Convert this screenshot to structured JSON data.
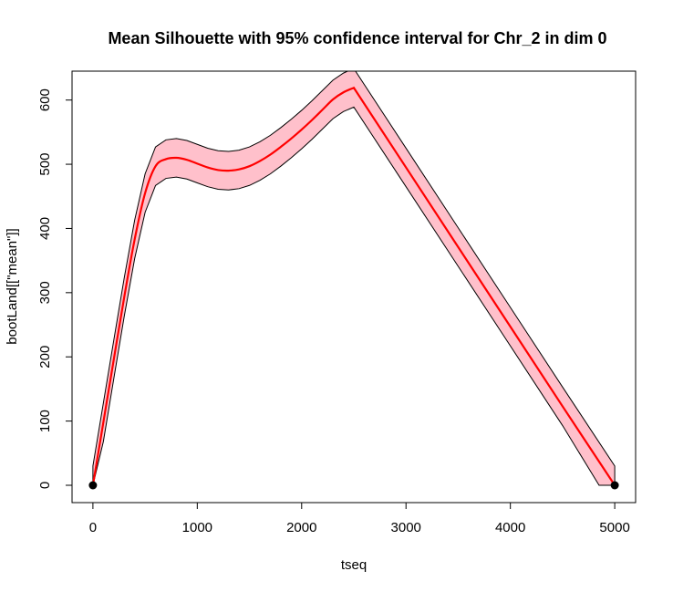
{
  "chart_data": {
    "type": "line",
    "title": "Mean Silhouette with 95% confidence interval for Chr_2 in dim 0",
    "xlabel": "tseq",
    "ylabel": "bootLand[[\"mean\"]]",
    "xlim": [
      -200,
      5200
    ],
    "ylim": [
      -27,
      645
    ],
    "x_ticks": [
      0,
      1000,
      2000,
      3000,
      4000,
      5000
    ],
    "x_tick_labels": [
      "0",
      "1000",
      "2000",
      "3000",
      "4000",
      "5000"
    ],
    "y_ticks": [
      0,
      100,
      200,
      300,
      400,
      500,
      600
    ],
    "y_tick_labels": [
      "0",
      "100",
      "200",
      "300",
      "400",
      "500",
      "600"
    ],
    "grid": false,
    "legend": "none",
    "series": [
      {
        "role": "mean",
        "color": "#ff0000",
        "x": [
          0,
          100,
          200,
          300,
          400,
          500,
          600,
          700,
          800,
          900,
          1000,
          1100,
          1200,
          1300,
          1400,
          1500,
          1600,
          1700,
          1800,
          1900,
          2000,
          2100,
          2200,
          2300,
          2400,
          2500,
          3000,
          3500,
          4000,
          4500,
          5000
        ],
        "y": [
          0,
          98,
          196,
          293,
          383,
          455,
          497,
          508,
          510,
          507,
          501,
          495,
          491,
          490,
          492,
          497,
          505,
          515,
          527,
          540,
          554,
          569,
          585,
          601,
          612,
          619,
          495,
          371,
          247,
          123,
          0
        ]
      },
      {
        "role": "upper-95",
        "color": "#000000",
        "x": [
          0,
          100,
          200,
          300,
          400,
          500,
          600,
          700,
          800,
          900,
          1000,
          1100,
          1200,
          1300,
          1400,
          1500,
          1600,
          1700,
          1800,
          1900,
          2000,
          2100,
          2200,
          2300,
          2400,
          2500,
          3000,
          3500,
          4000,
          4500,
          5000
        ],
        "y": [
          30,
          128,
          226,
          323,
          413,
          485,
          527,
          538,
          540,
          537,
          531,
          525,
          521,
          520,
          522,
          527,
          535,
          545,
          557,
          570,
          584,
          599,
          615,
          631,
          642,
          649,
          525,
          401,
          277,
          153,
          30
        ]
      },
      {
        "role": "lower-95",
        "color": "#000000",
        "x": [
          0,
          100,
          200,
          300,
          400,
          500,
          600,
          700,
          800,
          900,
          1000,
          1100,
          1200,
          1300,
          1400,
          1500,
          1600,
          1700,
          1800,
          1900,
          2000,
          2100,
          2200,
          2300,
          2400,
          2500,
          3000,
          3500,
          4000,
          4500,
          4850,
          5000
        ],
        "y": [
          0,
          68,
          166,
          263,
          353,
          425,
          467,
          478,
          480,
          477,
          471,
          465,
          461,
          460,
          462,
          467,
          475,
          485,
          497,
          510,
          524,
          539,
          555,
          571,
          582,
          589,
          465,
          341,
          217,
          93,
          0,
          0
        ]
      }
    ],
    "band_fill": "#ffc0cb",
    "points": [
      {
        "x": 0,
        "y": 0
      },
      {
        "x": 5000,
        "y": 0
      }
    ]
  }
}
